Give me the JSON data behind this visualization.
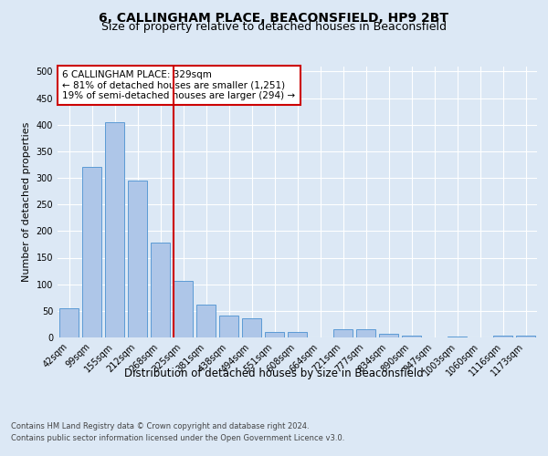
{
  "title": "6, CALLINGHAM PLACE, BEACONSFIELD, HP9 2BT",
  "subtitle": "Size of property relative to detached houses in Beaconsfield",
  "xlabel": "Distribution of detached houses by size in Beaconsfield",
  "ylabel": "Number of detached properties",
  "footer_line1": "Contains HM Land Registry data © Crown copyright and database right 2024.",
  "footer_line2": "Contains public sector information licensed under the Open Government Licence v3.0.",
  "categories": [
    "42sqm",
    "99sqm",
    "155sqm",
    "212sqm",
    "268sqm",
    "325sqm",
    "381sqm",
    "438sqm",
    "494sqm",
    "551sqm",
    "608sqm",
    "664sqm",
    "721sqm",
    "777sqm",
    "834sqm",
    "890sqm",
    "947sqm",
    "1003sqm",
    "1060sqm",
    "1116sqm",
    "1173sqm"
  ],
  "values": [
    55,
    320,
    405,
    295,
    178,
    107,
    62,
    41,
    36,
    11,
    11,
    0,
    15,
    15,
    7,
    4,
    0,
    1,
    0,
    3,
    4
  ],
  "bar_color": "#aec6e8",
  "bar_edge_color": "#5b9bd5",
  "vline_index": 5,
  "vline_color": "#cc0000",
  "annotation_text": "6 CALLINGHAM PLACE: 329sqm\n← 81% of detached houses are smaller (1,251)\n19% of semi-detached houses are larger (294) →",
  "annotation_box_color": "#cc0000",
  "ylim": [
    0,
    510
  ],
  "yticks": [
    0,
    50,
    100,
    150,
    200,
    250,
    300,
    350,
    400,
    450,
    500
  ],
  "bg_color": "#dce8f5",
  "plot_bg_color": "#dce8f5",
  "grid_color": "#ffffff",
  "title_fontsize": 10,
  "subtitle_fontsize": 9,
  "tick_fontsize": 7,
  "ylabel_fontsize": 8,
  "xlabel_fontsize": 8.5,
  "footer_fontsize": 6,
  "annotation_fontsize": 7.5
}
